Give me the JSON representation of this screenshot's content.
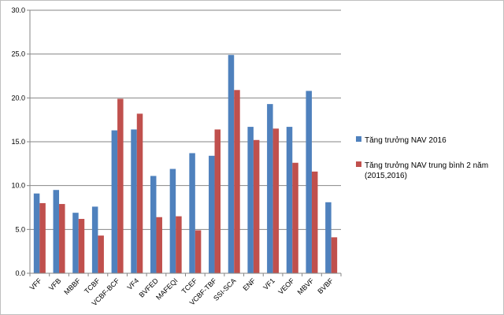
{
  "chart_data": {
    "type": "bar",
    "title": "",
    "xlabel": "",
    "ylabel": "",
    "ylim": [
      0,
      30
    ],
    "yticks": [
      0,
      5,
      10,
      15,
      20,
      25,
      30
    ],
    "ytick_labels": [
      "0.0",
      "5.0",
      "10.0",
      "15.0",
      "20.0",
      "25.0",
      "30.0"
    ],
    "grid": true,
    "legend_position": "right",
    "categories": [
      "VFF",
      "VFB",
      "MBBF",
      "TCBF",
      "VCBF-BCF",
      "VF4",
      "BVFED",
      "MAFEQI",
      "TCEF",
      "VCBF-TBF",
      "SSI-SCA",
      "ENF",
      "VF1",
      "VEOF",
      "MBVF",
      "BVBF"
    ],
    "series": [
      {
        "name": "Tăng trưởng NAV 2016",
        "color": "#4f81bd",
        "values": [
          9.1,
          9.5,
          6.9,
          7.6,
          16.3,
          16.4,
          11.1,
          11.9,
          13.7,
          13.4,
          24.9,
          16.7,
          19.3,
          16.7,
          20.8,
          8.1
        ]
      },
      {
        "name": "Tăng trưởng NAV trung bình 2 năm",
        "name_line2": "(2015,2016)",
        "color": "#c0504d",
        "values": [
          8.0,
          7.9,
          6.2,
          4.3,
          19.9,
          18.2,
          6.4,
          6.5,
          4.9,
          16.4,
          20.9,
          15.2,
          16.5,
          12.6,
          11.6,
          4.1
        ]
      }
    ]
  }
}
